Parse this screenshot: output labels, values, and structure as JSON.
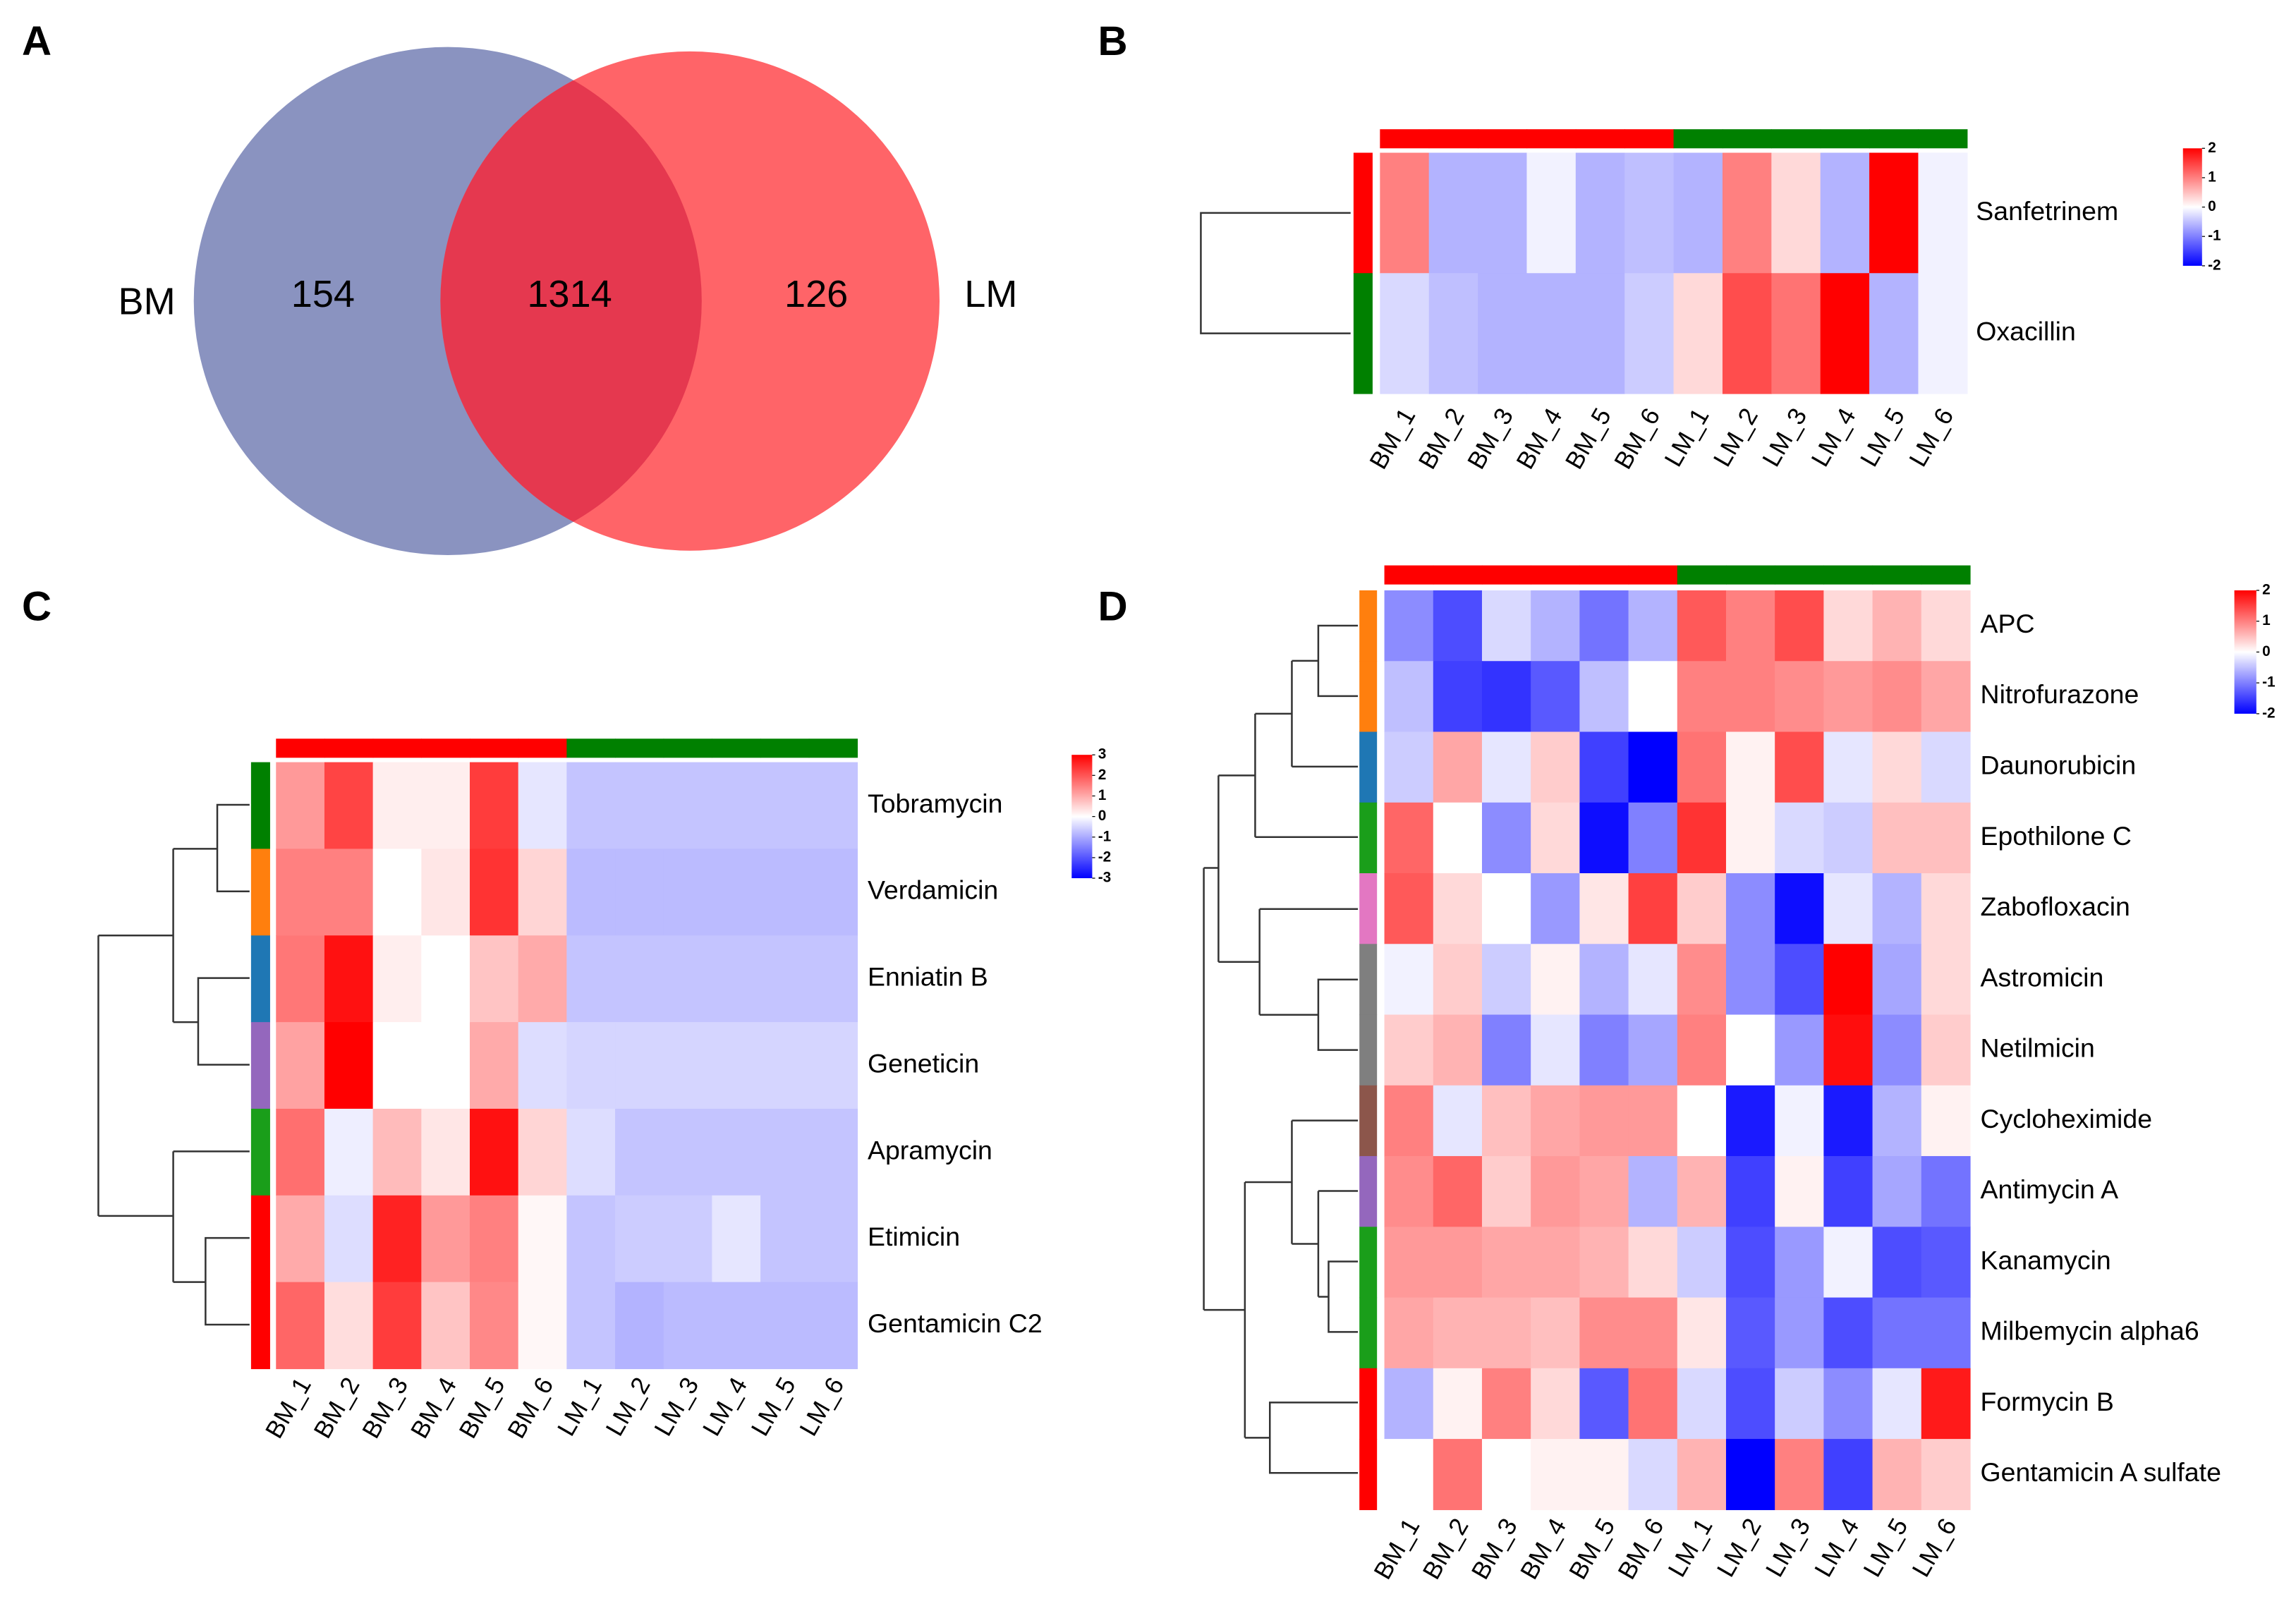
{
  "chart_data": [
    {
      "type": "venn",
      "panel": "A",
      "sets": [
        {
          "name": "BM",
          "color": "#8a93c0",
          "only": 154
        },
        {
          "name": "LM",
          "color": "#ff6468",
          "only": 126
        }
      ],
      "intersection": 1314,
      "intersection_color": "#e5384f"
    },
    {
      "type": "heatmap",
      "panel": "B",
      "columns": [
        "BM_1",
        "BM_2",
        "BM_3",
        "BM_4",
        "BM_5",
        "BM_6",
        "LM_1",
        "LM_2",
        "LM_3",
        "LM_4",
        "LM_5",
        "LM_6"
      ],
      "column_colors": [
        "#ff0000",
        "#ff0000",
        "#ff0000",
        "#ff0000",
        "#ff0000",
        "#ff0000",
        "#008000",
        "#008000",
        "#008000",
        "#008000",
        "#008000",
        "#008000"
      ],
      "rows": [
        "Sanfetrinem",
        "Oxacillin"
      ],
      "row_colors": [
        "#ff0000",
        "#008000"
      ],
      "values": [
        [
          1.0,
          -0.6,
          -0.6,
          -0.1,
          -0.6,
          -0.5,
          -0.6,
          1.0,
          0.3,
          -0.6,
          2.0,
          -0.1
        ],
        [
          -0.3,
          -0.5,
          -0.6,
          -0.6,
          -0.6,
          -0.4,
          0.3,
          1.4,
          1.1,
          2.0,
          -0.6,
          -0.1
        ]
      ],
      "zlim": [
        -2,
        2
      ],
      "colorbar_ticks": [
        2,
        1,
        0,
        -1,
        -2
      ],
      "low_color": "#0000ff",
      "mid_color": "#ffffff",
      "high_color": "#ff0000"
    },
    {
      "type": "heatmap",
      "panel": "C",
      "columns": [
        "BM_1",
        "BM_2",
        "BM_3",
        "BM_4",
        "BM_5",
        "BM_6",
        "LM_1",
        "LM_2",
        "LM_3",
        "LM_4",
        "LM_5",
        "LM_6"
      ],
      "column_colors": [
        "#ff0000",
        "#ff0000",
        "#ff0000",
        "#ff0000",
        "#ff0000",
        "#ff0000",
        "#008000",
        "#008000",
        "#008000",
        "#008000",
        "#008000",
        "#008000"
      ],
      "rows": [
        "Tobramycin",
        "Verdamicin",
        "Enniatin B",
        "Geneticin",
        "Apramycin",
        "Etimicin",
        "Gentamicin C2"
      ],
      "row_colors": [
        "#008000",
        "#ff7f0e",
        "#1f77b4",
        "#9467bd",
        "#1a9e1a",
        "#ff0000",
        "#ff0000"
      ],
      "values": [
        [
          1.2,
          2.2,
          0.2,
          0.2,
          2.3,
          -0.3,
          -0.7,
          -0.7,
          -0.7,
          -0.7,
          -0.7,
          -0.7
        ],
        [
          1.5,
          1.5,
          0.0,
          0.3,
          2.4,
          0.5,
          -0.8,
          -0.8,
          -0.8,
          -0.8,
          -0.8,
          -0.8
        ],
        [
          1.6,
          2.8,
          0.2,
          0.0,
          0.7,
          1.0,
          -0.7,
          -0.7,
          -0.7,
          -0.7,
          -0.7,
          -0.7
        ],
        [
          1.1,
          3.0,
          0.0,
          0.0,
          1.0,
          -0.4,
          -0.5,
          -0.5,
          -0.5,
          -0.5,
          -0.5,
          -0.5
        ],
        [
          1.7,
          -0.2,
          0.8,
          0.3,
          2.8,
          0.5,
          -0.4,
          -0.7,
          -0.7,
          -0.7,
          -0.7,
          -0.7
        ],
        [
          1.0,
          -0.4,
          2.6,
          1.2,
          1.5,
          0.1,
          -0.7,
          -0.6,
          -0.6,
          -0.3,
          -0.7,
          -0.7
        ],
        [
          1.8,
          0.4,
          2.3,
          0.7,
          1.4,
          0.1,
          -0.7,
          -0.9,
          -0.8,
          -0.8,
          -0.8,
          -0.8
        ]
      ],
      "zlim": [
        -3,
        3
      ],
      "colorbar_ticks": [
        3,
        2,
        1,
        0,
        -1,
        -2,
        -3
      ],
      "low_color": "#0000ff",
      "mid_color": "#ffffff",
      "high_color": "#ff0000"
    },
    {
      "type": "heatmap",
      "panel": "D",
      "columns": [
        "BM_1",
        "BM_2",
        "BM_3",
        "BM_4",
        "BM_5",
        "BM_6",
        "LM_1",
        "LM_2",
        "LM_3",
        "LM_4",
        "LM_5",
        "LM_6"
      ],
      "column_colors": [
        "#ff0000",
        "#ff0000",
        "#ff0000",
        "#ff0000",
        "#ff0000",
        "#ff0000",
        "#008000",
        "#008000",
        "#008000",
        "#008000",
        "#008000",
        "#008000"
      ],
      "rows": [
        "APC",
        "Nitrofurazone",
        "Daunorubicin",
        "Epothilone C",
        "Zabofloxacin",
        "Astromicin",
        "Netilmicin",
        "Cycloheximide",
        "Antimycin A",
        "Kanamycin",
        "Milbemycin alpha6",
        "Formycin B",
        "Gentamicin A sulfate"
      ],
      "row_colors": [
        "#ff7f0e",
        "#ff7f0e",
        "#1f77b4",
        "#1a9e1a",
        "#e377c2",
        "#7f7f7f",
        "#7f7f7f",
        "#8c564b",
        "#9467bd",
        "#1a9e1a",
        "#1a9e1a",
        "#ff0000",
        "#ff0000"
      ],
      "values": [
        [
          -0.9,
          -1.4,
          -0.3,
          -0.6,
          -1.1,
          -0.6,
          1.3,
          1.0,
          1.4,
          0.3,
          0.6,
          0.3
        ],
        [
          -0.5,
          -1.5,
          -1.6,
          -1.3,
          -0.5,
          0.0,
          1.0,
          1.0,
          0.9,
          0.8,
          0.9,
          0.7
        ],
        [
          -0.4,
          0.7,
          -0.2,
          0.4,
          -1.5,
          -2.0,
          1.1,
          0.1,
          1.4,
          -0.2,
          0.3,
          -0.3
        ],
        [
          1.2,
          0.0,
          -0.9,
          0.3,
          -1.9,
          -1.0,
          1.6,
          0.1,
          -0.3,
          -0.4,
          0.5,
          0.5
        ],
        [
          1.3,
          0.3,
          0.0,
          -0.8,
          0.2,
          1.5,
          0.4,
          -0.9,
          -1.9,
          -0.2,
          -0.6,
          0.3
        ],
        [
          -0.1,
          0.4,
          -0.4,
          0.1,
          -0.6,
          -0.2,
          0.9,
          -0.9,
          -1.4,
          2.0,
          -0.7,
          0.3
        ],
        [
          0.4,
          0.6,
          -1.0,
          -0.2,
          -1.0,
          -0.7,
          1.0,
          0.0,
          -0.8,
          1.9,
          -0.9,
          0.4
        ],
        [
          1.0,
          -0.2,
          0.5,
          0.7,
          0.8,
          0.8,
          0.0,
          -1.8,
          -0.1,
          -1.8,
          -0.6,
          0.1
        ],
        [
          0.9,
          1.2,
          0.4,
          0.8,
          0.7,
          -0.6,
          0.6,
          -1.5,
          0.1,
          -1.5,
          -0.7,
          -1.1
        ],
        [
          0.8,
          0.8,
          0.7,
          0.7,
          0.6,
          0.3,
          -0.4,
          -1.4,
          -0.8,
          -0.1,
          -1.4,
          -1.3
        ],
        [
          0.7,
          0.6,
          0.6,
          0.5,
          0.9,
          0.9,
          0.2,
          -1.3,
          -0.8,
          -1.4,
          -1.1,
          -1.1
        ],
        [
          -0.6,
          0.1,
          1.0,
          0.3,
          -1.3,
          1.1,
          -0.3,
          -1.4,
          -0.4,
          -0.9,
          -0.2,
          1.8
        ],
        [
          0.0,
          1.1,
          0.0,
          0.1,
          0.1,
          -0.3,
          0.6,
          -2.0,
          1.0,
          -1.5,
          0.6,
          0.4
        ]
      ],
      "zlim": [
        -2,
        2
      ],
      "colorbar_ticks": [
        2,
        1,
        0,
        -1,
        -2
      ],
      "low_color": "#0000ff",
      "mid_color": "#ffffff",
      "high_color": "#ff0000"
    }
  ]
}
